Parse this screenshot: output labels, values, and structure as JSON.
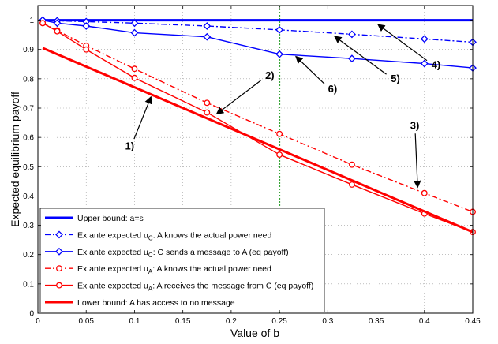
{
  "chart_data": {
    "type": "line",
    "xlabel": "Value of b",
    "ylabel": "Expected equilibrium payoff",
    "xlim": [
      0,
      0.45
    ],
    "ylim": [
      0,
      1.05
    ],
    "xticks": [
      "0",
      "0.05",
      "0.1",
      "0.15",
      "0.2",
      "0.25",
      "0.3",
      "0.35",
      "0.4",
      "0.45"
    ],
    "yticks": [
      "0",
      "0.1",
      "0.2",
      "0.3",
      "0.4",
      "0.5",
      "0.6",
      "0.7",
      "0.8",
      "0.9",
      "1"
    ],
    "grid": true,
    "legend_placement": "bottom-left",
    "reference_line_x": 0.25,
    "series": [
      {
        "legend": "Upper bound: a=s",
        "color": "#0000ff",
        "style": "solid",
        "marker": "none",
        "width": "thick",
        "x": [
          0.005,
          0.45
        ],
        "y": [
          1.0,
          1.0
        ]
      },
      {
        "legend_prefix": "Ex ante expected u",
        "legend_sub": "C",
        "legend_suffix": ": A knows the actual power need",
        "color": "#0000ff",
        "style": "dashdot",
        "marker": "diamond",
        "width": "thin",
        "x": [
          0.005,
          0.02,
          0.05,
          0.1,
          0.175,
          0.25,
          0.325,
          0.4,
          0.45
        ],
        "y": [
          1.0,
          0.998,
          0.995,
          0.99,
          0.98,
          0.967,
          0.952,
          0.936,
          0.925
        ]
      },
      {
        "legend_prefix": "Ex ante expected u",
        "legend_sub": "C",
        "legend_suffix": ": C sends a message to A (eq payoff)",
        "color": "#0000ff",
        "style": "solid",
        "marker": "diamond",
        "width": "thin",
        "x": [
          0.005,
          0.02,
          0.05,
          0.1,
          0.175,
          0.25,
          0.325,
          0.4,
          0.45
        ],
        "y": [
          1.0,
          0.99,
          0.98,
          0.957,
          0.943,
          0.884,
          0.869,
          0.852,
          0.837
        ]
      },
      {
        "legend_prefix": "Ex ante expected u",
        "legend_sub": "A",
        "legend_suffix": ": A knows the actual power need",
        "color": "#ff0000",
        "style": "dashdot",
        "marker": "circle",
        "width": "thin",
        "x": [
          0.005,
          0.02,
          0.05,
          0.1,
          0.175,
          0.25,
          0.325,
          0.4,
          0.45
        ],
        "y": [
          0.99,
          0.965,
          0.913,
          0.834,
          0.718,
          0.612,
          0.507,
          0.41,
          0.346
        ]
      },
      {
        "legend_prefix": "Ex ante expected u",
        "legend_sub": "A",
        "legend_suffix": ": A receives the message from C (eq payoff)",
        "color": "#ff0000",
        "style": "solid",
        "marker": "circle",
        "width": "thin",
        "x": [
          0.005,
          0.02,
          0.05,
          0.1,
          0.175,
          0.25,
          0.325,
          0.4,
          0.45
        ],
        "y": [
          0.99,
          0.962,
          0.9,
          0.803,
          0.685,
          0.541,
          0.439,
          0.34,
          0.277
        ]
      },
      {
        "legend": "Lower bound: A has access to no message",
        "color": "#ff0000",
        "style": "solid",
        "marker": "none",
        "width": "thick",
        "x": [
          0.005,
          0.45
        ],
        "y": [
          0.905,
          0.277
        ]
      }
    ],
    "annotations": [
      {
        "text": "1)",
        "label_at": [
          0.095,
          0.57
        ],
        "arrow_to": [
          0.117,
          0.738
        ]
      },
      {
        "text": "2)",
        "label_at": [
          0.24,
          0.81
        ],
        "arrow_to": [
          0.185,
          0.68
        ]
      },
      {
        "text": "3)",
        "label_at": [
          0.39,
          0.64
        ],
        "arrow_to": [
          0.393,
          0.43
        ]
      },
      {
        "text": "4)",
        "label_at": [
          0.412,
          0.847
        ],
        "arrow_to": [
          0.352,
          0.985
        ]
      },
      {
        "text": "5)",
        "label_at": [
          0.37,
          0.8
        ],
        "arrow_to": [
          0.307,
          0.945
        ]
      },
      {
        "text": "6)",
        "label_at": [
          0.305,
          0.765
        ],
        "arrow_to": [
          0.267,
          0.876
        ]
      }
    ]
  }
}
